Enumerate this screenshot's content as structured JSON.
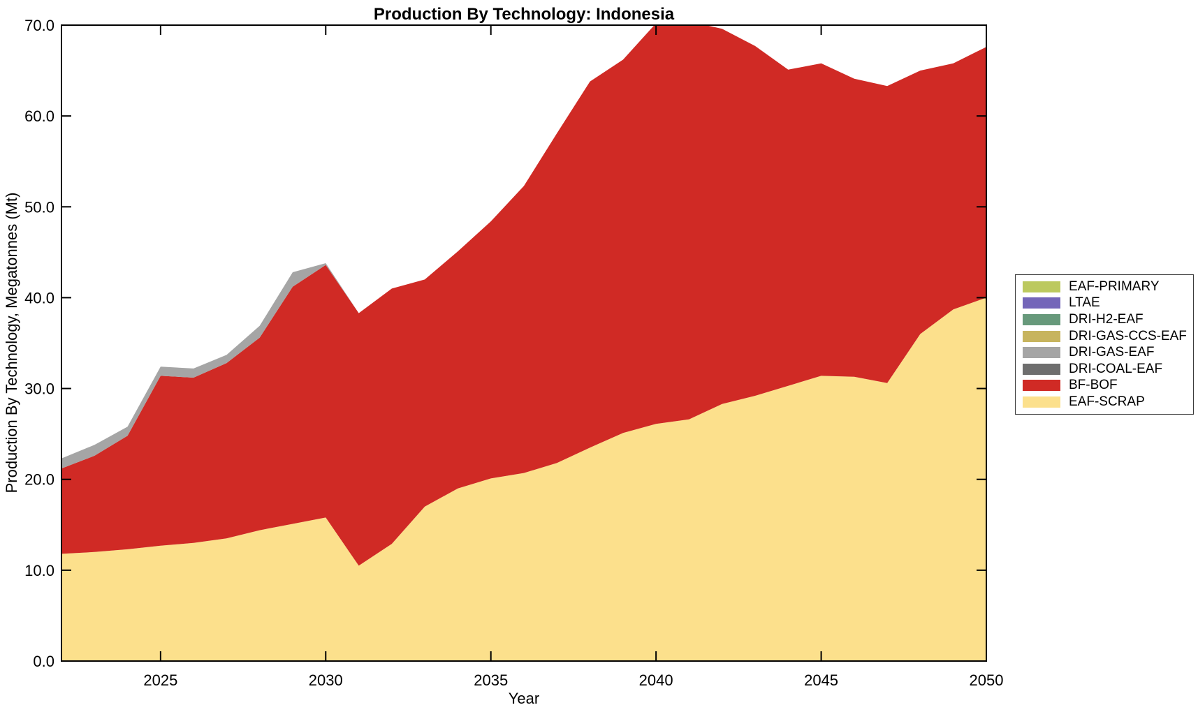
{
  "page": {
    "background_color": "#ffffff",
    "axis_color": "#000000"
  },
  "chart_data": {
    "type": "area",
    "stacked": true,
    "title": "Production By Technology: Indonesia",
    "xlabel": "Year",
    "ylabel": "Production By Technology, Megatonnes (Mt)",
    "xlim": [
      2022,
      2050
    ],
    "ylim": [
      0,
      70
    ],
    "x_ticks": [
      2025,
      2030,
      2035,
      2040,
      2045,
      2050
    ],
    "y_ticks": [
      0,
      10,
      20,
      30,
      40,
      50,
      60,
      70
    ],
    "y_tick_decimals": 1,
    "grid": false,
    "legend_position": "outside-right",
    "x": [
      2022,
      2023,
      2024,
      2025,
      2026,
      2027,
      2028,
      2029,
      2030,
      2031,
      2032,
      2033,
      2034,
      2035,
      2036,
      2037,
      2038,
      2039,
      2040,
      2041,
      2042,
      2043,
      2044,
      2045,
      2046,
      2047,
      2048,
      2049,
      2050
    ],
    "stack_order_bottom_to_top": [
      "EAF-SCRAP",
      "BF-BOF",
      "DRI-COAL-EAF",
      "DRI-GAS-EAF",
      "DRI-GAS-CCS-EAF",
      "DRI-H2-EAF",
      "LTAE",
      "EAF-PRIMARY"
    ],
    "series": [
      {
        "name": "EAF-SCRAP",
        "color": "#fce08c",
        "values": [
          11.8,
          12.0,
          12.3,
          12.7,
          13.0,
          13.5,
          14.4,
          15.1,
          15.8,
          10.5,
          12.9,
          17.0,
          19.0,
          20.1,
          20.7,
          21.8,
          23.5,
          25.1,
          26.1,
          26.6,
          28.3,
          29.2,
          30.3,
          31.4,
          31.3,
          30.6,
          36.0,
          38.7,
          40.0
        ]
      },
      {
        "name": "BF-BOF",
        "color": "#d02a25",
        "values": [
          9.4,
          10.6,
          12.5,
          18.7,
          18.2,
          19.3,
          21.2,
          26.1,
          27.8,
          27.8,
          28.1,
          25.0,
          26.1,
          28.3,
          31.6,
          36.3,
          40.3,
          41.1,
          44.1,
          43.8,
          41.3,
          38.5,
          34.8,
          34.4,
          32.8,
          32.7,
          29.0,
          27.1,
          27.6
        ]
      },
      {
        "name": "DRI-COAL-EAF",
        "color": "#6e6e6e",
        "values": [
          0,
          0,
          0,
          0,
          0,
          0,
          0,
          0,
          0,
          0,
          0,
          0,
          0,
          0,
          0,
          0,
          0,
          0,
          0,
          0,
          0,
          0,
          0,
          0,
          0,
          0,
          0,
          0,
          0
        ]
      },
      {
        "name": "DRI-GAS-EAF",
        "color": "#a5a5a5",
        "values": [
          1.1,
          1.2,
          1.0,
          1.0,
          1.0,
          0.9,
          1.3,
          1.6,
          0.2,
          0,
          0,
          0,
          0,
          0,
          0,
          0,
          0,
          0,
          0,
          0,
          0,
          0,
          0,
          0,
          0,
          0,
          0,
          0,
          0
        ]
      },
      {
        "name": "DRI-GAS-CCS-EAF",
        "color": "#c7b45e",
        "values": [
          0,
          0,
          0,
          0,
          0,
          0,
          0,
          0,
          0,
          0,
          0,
          0,
          0,
          0,
          0,
          0,
          0,
          0,
          0,
          0,
          0,
          0,
          0,
          0,
          0,
          0,
          0,
          0,
          0
        ]
      },
      {
        "name": "DRI-H2-EAF",
        "color": "#67997b",
        "values": [
          0,
          0,
          0,
          0,
          0,
          0,
          0,
          0,
          0,
          0,
          0,
          0,
          0,
          0,
          0,
          0,
          0,
          0,
          0,
          0,
          0,
          0,
          0,
          0,
          0,
          0,
          0,
          0,
          0
        ]
      },
      {
        "name": "LTAE",
        "color": "#7466b9",
        "values": [
          0,
          0,
          0,
          0,
          0,
          0,
          0,
          0,
          0,
          0,
          0,
          0,
          0,
          0,
          0,
          0,
          0,
          0,
          0,
          0,
          0,
          0,
          0,
          0,
          0,
          0,
          0,
          0,
          0
        ]
      },
      {
        "name": "EAF-PRIMARY",
        "color": "#bcc95f",
        "values": [
          0,
          0,
          0,
          0,
          0,
          0,
          0,
          0,
          0,
          0,
          0,
          0,
          0,
          0,
          0,
          0,
          0,
          0,
          0,
          0,
          0,
          0,
          0,
          0,
          0,
          0,
          0,
          0,
          0
        ]
      }
    ],
    "legend_top_to_bottom": [
      "EAF-PRIMARY",
      "LTAE",
      "DRI-H2-EAF",
      "DRI-GAS-CCS-EAF",
      "DRI-GAS-EAF",
      "DRI-COAL-EAF",
      "BF-BOF",
      "EAF-SCRAP"
    ]
  }
}
